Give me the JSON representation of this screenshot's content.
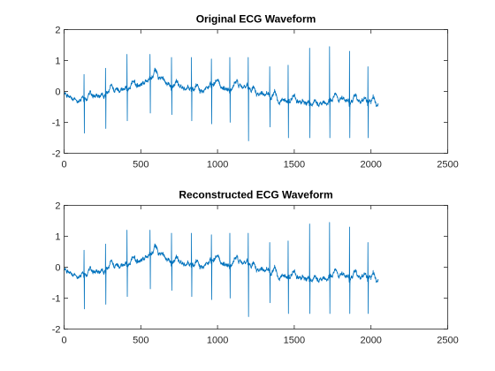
{
  "figure": {
    "background": "#ffffff"
  },
  "chart_data": [
    {
      "type": "line",
      "title": "Original ECG Waveform",
      "xlabel": "",
      "ylabel": "",
      "xlim": [
        0,
        2500
      ],
      "ylim": [
        -2,
        2
      ],
      "xticks": [
        0,
        500,
        1000,
        1500,
        2000,
        2500
      ],
      "yticks": [
        -2,
        -1,
        0,
        1,
        2
      ],
      "grid": false,
      "legend": "none",
      "series": [
        {
          "color": "#0072BD",
          "n_samples": 2048,
          "baseline": [
            [
              0,
              -0.05
            ],
            [
              60,
              -0.3
            ],
            [
              150,
              -0.25
            ],
            [
              260,
              -0.15
            ],
            [
              330,
              0.05
            ],
            [
              420,
              0.1
            ],
            [
              520,
              0.3
            ],
            [
              590,
              0.5
            ],
            [
              640,
              0.4
            ],
            [
              700,
              0.2
            ],
            [
              780,
              0.1
            ],
            [
              870,
              0.05
            ],
            [
              930,
              0.15
            ],
            [
              1000,
              0.2
            ],
            [
              1080,
              0.05
            ],
            [
              1150,
              0.25
            ],
            [
              1250,
              -0.05
            ],
            [
              1330,
              -0.05
            ],
            [
              1400,
              -0.35
            ],
            [
              1480,
              -0.3
            ],
            [
              1560,
              -0.35
            ],
            [
              1640,
              -0.45
            ],
            [
              1720,
              -0.35
            ],
            [
              1800,
              -0.2
            ],
            [
              1880,
              -0.35
            ],
            [
              1960,
              -0.25
            ],
            [
              2040,
              -0.45
            ]
          ],
          "r_peaks": [
            [
              130,
              0.55,
              -1.35
            ],
            [
              270,
              0.75,
              -1.2
            ],
            [
              410,
              1.2,
              -0.95
            ],
            [
              560,
              1.2,
              -0.7
            ],
            [
              700,
              1.1,
              -0.75
            ],
            [
              830,
              1.1,
              -0.95
            ],
            [
              960,
              1.05,
              -1.05
            ],
            [
              1080,
              1.1,
              -1.0
            ],
            [
              1200,
              1.1,
              -1.6
            ],
            [
              1340,
              0.8,
              -1.15
            ],
            [
              1460,
              0.85,
              -1.5
            ],
            [
              1600,
              1.4,
              -1.5
            ],
            [
              1730,
              1.45,
              -1.5
            ],
            [
              1860,
              1.3,
              -1.5
            ],
            [
              1980,
              0.8,
              -1.5
            ]
          ]
        }
      ]
    },
    {
      "type": "line",
      "title": "Reconstructed ECG Waveform",
      "xlabel": "",
      "ylabel": "",
      "xlim": [
        0,
        2500
      ],
      "ylim": [
        -2,
        2
      ],
      "xticks": [
        0,
        500,
        1000,
        1500,
        2000,
        2500
      ],
      "yticks": [
        -2,
        -1,
        0,
        1,
        2
      ],
      "grid": false,
      "legend": "none",
      "series": [
        {
          "color": "#0072BD",
          "n_samples": 2048,
          "baseline": [
            [
              0,
              -0.05
            ],
            [
              60,
              -0.3
            ],
            [
              150,
              -0.25
            ],
            [
              260,
              -0.15
            ],
            [
              330,
              0.05
            ],
            [
              420,
              0.1
            ],
            [
              520,
              0.3
            ],
            [
              590,
              0.5
            ],
            [
              640,
              0.4
            ],
            [
              700,
              0.2
            ],
            [
              780,
              0.1
            ],
            [
              870,
              0.05
            ],
            [
              930,
              0.15
            ],
            [
              1000,
              0.2
            ],
            [
              1080,
              0.05
            ],
            [
              1150,
              0.25
            ],
            [
              1250,
              -0.05
            ],
            [
              1330,
              -0.05
            ],
            [
              1400,
              -0.35
            ],
            [
              1480,
              -0.3
            ],
            [
              1560,
              -0.35
            ],
            [
              1640,
              -0.45
            ],
            [
              1720,
              -0.35
            ],
            [
              1800,
              -0.2
            ],
            [
              1880,
              -0.35
            ],
            [
              1960,
              -0.25
            ],
            [
              2040,
              -0.45
            ]
          ],
          "r_peaks": [
            [
              130,
              0.55,
              -1.35
            ],
            [
              270,
              0.75,
              -1.2
            ],
            [
              410,
              1.2,
              -0.95
            ],
            [
              560,
              1.2,
              -0.7
            ],
            [
              700,
              1.1,
              -0.75
            ],
            [
              830,
              1.1,
              -0.95
            ],
            [
              960,
              1.05,
              -1.05
            ],
            [
              1080,
              1.1,
              -1.0
            ],
            [
              1200,
              1.1,
              -1.6
            ],
            [
              1340,
              0.8,
              -1.15
            ],
            [
              1460,
              0.85,
              -1.5
            ],
            [
              1600,
              1.4,
              -1.5
            ],
            [
              1730,
              1.45,
              -1.5
            ],
            [
              1860,
              1.3,
              -1.5
            ],
            [
              1980,
              0.8,
              -1.5
            ]
          ]
        }
      ]
    }
  ]
}
